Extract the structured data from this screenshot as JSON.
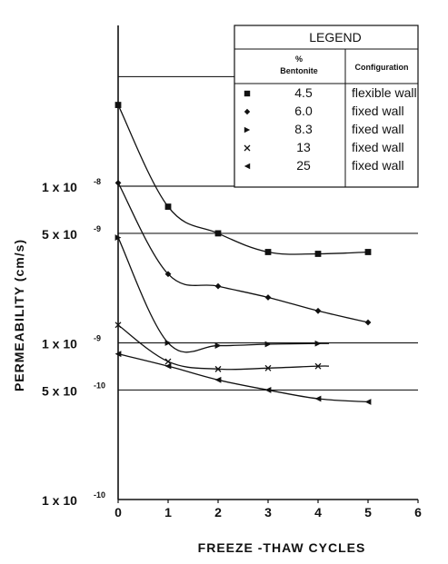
{
  "chart_data": {
    "type": "line",
    "title": "",
    "xlabel": "FREEZE -THAW CYCLES",
    "ylabel": "PERMEABILITY (cm/s)",
    "x_scale": "linear",
    "y_scale": "log",
    "xlim": [
      0,
      6
    ],
    "ylim": [
      1e-10,
      1e-08
    ],
    "x_ticks": [
      {
        "value": 0,
        "label": "0"
      },
      {
        "value": 1,
        "label": "1"
      },
      {
        "value": 2,
        "label": "2"
      },
      {
        "value": 3,
        "label": "3"
      },
      {
        "value": 4,
        "label": "4"
      },
      {
        "value": 5,
        "label": "5"
      },
      {
        "value": 6,
        "label": "6"
      }
    ],
    "y_ticks": [
      {
        "value": 1e-08,
        "label": "1 x 10",
        "exp": "-8"
      },
      {
        "value": 5e-09,
        "label": "5 x 10",
        "exp": "-9"
      },
      {
        "value": 1e-09,
        "label": "1 x 10",
        "exp": "-9"
      },
      {
        "value": 5e-10,
        "label": "5 x 10",
        "exp": "-10"
      },
      {
        "value": 1e-10,
        "label": "1 x 10",
        "exp": "-10"
      }
    ],
    "y_gridlines": [
      5e-08,
      1e-08,
      5e-09,
      1e-09,
      5e-10
    ],
    "legend": {
      "title": "LEGEND",
      "col1_header_line1": "%",
      "col1_header_line2": "Bentonite",
      "col2_header": "Configuration",
      "placement": "top-right"
    },
    "series": [
      {
        "name": "4.5",
        "configuration": "flexible wall",
        "marker": "square",
        "x": [
          0,
          1,
          2,
          3,
          4,
          5
        ],
        "y": [
          3.3e-08,
          7.4e-09,
          5e-09,
          3.8e-09,
          3.7e-09,
          3.8e-09
        ]
      },
      {
        "name": "6.0",
        "configuration": "fixed wall",
        "marker": "diamond",
        "x": [
          0,
          1,
          2,
          3,
          4,
          5
        ],
        "y": [
          1.05e-08,
          2.75e-09,
          2.3e-09,
          1.95e-09,
          1.6e-09,
          1.35e-09
        ]
      },
      {
        "name": "8.3",
        "configuration": "fixed wall",
        "marker": "triangle-right",
        "x": [
          0,
          1,
          2,
          3,
          4
        ],
        "y": [
          4.7e-09,
          1e-09,
          9.6e-10,
          9.8e-10,
          9.9e-10
        ]
      },
      {
        "name": "13",
        "configuration": "fixed wall",
        "marker": "x",
        "x": [
          0,
          1,
          2,
          3,
          4
        ],
        "y": [
          1.3e-09,
          7.6e-10,
          6.8e-10,
          6.9e-10,
          7.1e-10
        ]
      },
      {
        "name": "25",
        "configuration": "fixed wall",
        "marker": "triangle-left",
        "x": [
          0,
          1,
          2,
          3,
          4,
          5
        ],
        "y": [
          8.5e-10,
          7.1e-10,
          5.8e-10,
          5e-10,
          4.4e-10,
          4.2e-10
        ]
      }
    ]
  }
}
